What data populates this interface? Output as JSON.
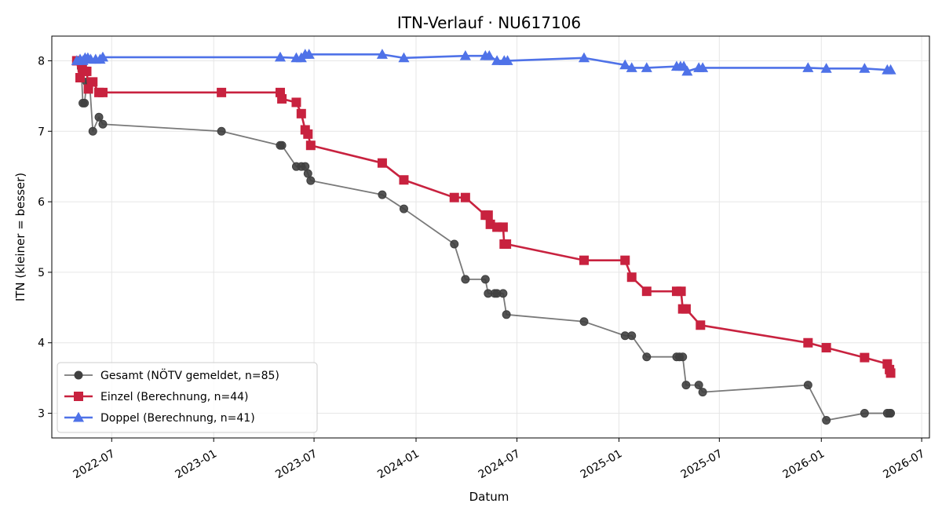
{
  "chart_data": {
    "type": "line",
    "title": "ITN-Verlauf · NU617106",
    "xlabel": "Datum",
    "ylabel": "ITN  (kleiner = besser)",
    "x_type": "date",
    "xlim": [
      "2022-03-15",
      "2026-07-15"
    ],
    "ylim": [
      2.65,
      8.35
    ],
    "x_ticks": [
      "2022-07",
      "2023-01",
      "2023-07",
      "2024-01",
      "2024-07",
      "2025-01",
      "2025-07",
      "2026-01",
      "2026-07"
    ],
    "y_ticks": [
      3,
      4,
      5,
      6,
      7,
      8
    ],
    "grid": true,
    "legend_position": "lower-left",
    "series": [
      {
        "name": "Gesamt (NÖTV gemeldet, n=85)",
        "color": "#404040",
        "marker": "circle",
        "points": [
          [
            "2022-04-29",
            8.0
          ],
          [
            "2022-05-03",
            8.0
          ],
          [
            "2022-05-07",
            7.9
          ],
          [
            "2022-05-10",
            7.4
          ],
          [
            "2022-05-13",
            7.4
          ],
          [
            "2022-05-17",
            7.7
          ],
          [
            "2022-05-22",
            7.7
          ],
          [
            "2022-05-28",
            7.0
          ],
          [
            "2022-06-08",
            7.2
          ],
          [
            "2022-06-15",
            7.1
          ],
          [
            "2023-01-15",
            7.0
          ],
          [
            "2023-05-01",
            6.8
          ],
          [
            "2023-05-04",
            6.8
          ],
          [
            "2023-05-30",
            6.5
          ],
          [
            "2023-06-08",
            6.5
          ],
          [
            "2023-06-15",
            6.5
          ],
          [
            "2023-06-20",
            6.4
          ],
          [
            "2023-06-25",
            6.3
          ],
          [
            "2023-11-01",
            6.1
          ],
          [
            "2023-12-10",
            5.9
          ],
          [
            "2024-03-10",
            5.4
          ],
          [
            "2024-03-30",
            4.9
          ],
          [
            "2024-05-05",
            4.9
          ],
          [
            "2024-05-10",
            4.7
          ],
          [
            "2024-05-22",
            4.7
          ],
          [
            "2024-05-26",
            4.7
          ],
          [
            "2024-06-06",
            4.7
          ],
          [
            "2024-06-12",
            4.4
          ],
          [
            "2024-10-30",
            4.3
          ],
          [
            "2025-01-12",
            4.1
          ],
          [
            "2025-01-24",
            4.1
          ],
          [
            "2025-02-20",
            3.8
          ],
          [
            "2025-04-15",
            3.8
          ],
          [
            "2025-04-20",
            3.8
          ],
          [
            "2025-04-26",
            3.8
          ],
          [
            "2025-05-02",
            3.4
          ],
          [
            "2025-05-25",
            3.4
          ],
          [
            "2025-06-01",
            3.3
          ],
          [
            "2025-12-08",
            3.4
          ],
          [
            "2026-01-10",
            2.9
          ],
          [
            "2026-03-20",
            3.0
          ],
          [
            "2026-04-30",
            3.0
          ],
          [
            "2026-05-04",
            3.0
          ],
          [
            "2026-05-06",
            3.0
          ]
        ]
      },
      {
        "name": "Einzel (Berechnung, n=44)",
        "color": "#c8223f",
        "marker": "square",
        "points": [
          [
            "2022-04-29",
            8.0
          ],
          [
            "2022-05-05",
            7.76
          ],
          [
            "2022-05-09",
            7.9
          ],
          [
            "2022-05-13",
            7.85
          ],
          [
            "2022-05-17",
            7.85
          ],
          [
            "2022-05-20",
            7.6
          ],
          [
            "2022-05-28",
            7.7
          ],
          [
            "2022-06-08",
            7.55
          ],
          [
            "2022-06-15",
            7.55
          ],
          [
            "2023-01-15",
            7.55
          ],
          [
            "2023-05-01",
            7.55
          ],
          [
            "2023-05-04",
            7.46
          ],
          [
            "2023-05-30",
            7.41
          ],
          [
            "2023-06-08",
            7.25
          ],
          [
            "2023-06-15",
            7.02
          ],
          [
            "2023-06-20",
            6.96
          ],
          [
            "2023-06-25",
            6.8
          ],
          [
            "2023-11-01",
            6.55
          ],
          [
            "2023-12-10",
            6.31
          ],
          [
            "2024-03-10",
            6.06
          ],
          [
            "2024-03-30",
            6.06
          ],
          [
            "2024-05-05",
            5.81
          ],
          [
            "2024-05-10",
            5.81
          ],
          [
            "2024-05-14",
            5.68
          ],
          [
            "2024-05-26",
            5.64
          ],
          [
            "2024-06-06",
            5.64
          ],
          [
            "2024-06-08",
            5.4
          ],
          [
            "2024-06-12",
            5.4
          ],
          [
            "2024-10-30",
            5.17
          ],
          [
            "2025-01-12",
            5.17
          ],
          [
            "2025-01-24",
            4.93
          ],
          [
            "2025-02-20",
            4.73
          ],
          [
            "2025-04-15",
            4.73
          ],
          [
            "2025-04-23",
            4.73
          ],
          [
            "2025-04-26",
            4.48
          ],
          [
            "2025-05-02",
            4.48
          ],
          [
            "2025-05-28",
            4.25
          ],
          [
            "2025-12-08",
            4.0
          ],
          [
            "2026-01-10",
            3.93
          ],
          [
            "2026-03-20",
            3.79
          ],
          [
            "2026-04-30",
            3.7
          ],
          [
            "2026-05-04",
            3.62
          ],
          [
            "2026-05-06",
            3.57
          ]
        ]
      },
      {
        "name": "Doppel (Berechnung, n=41)",
        "color": "#4f72e8",
        "marker": "triangle",
        "points": [
          [
            "2022-04-29",
            8.0
          ],
          [
            "2022-05-05",
            8.02
          ],
          [
            "2022-05-10",
            8.0
          ],
          [
            "2022-05-14",
            8.04
          ],
          [
            "2022-05-19",
            8.04
          ],
          [
            "2022-05-24",
            8.02
          ],
          [
            "2022-06-02",
            8.02
          ],
          [
            "2022-06-10",
            8.02
          ],
          [
            "2022-06-15",
            8.05
          ],
          [
            "2023-05-01",
            8.05
          ],
          [
            "2023-05-30",
            8.04
          ],
          [
            "2023-06-08",
            8.04
          ],
          [
            "2023-06-15",
            8.09
          ],
          [
            "2023-06-22",
            8.09
          ],
          [
            "2023-11-01",
            8.09
          ],
          [
            "2023-12-10",
            8.04
          ],
          [
            "2024-03-30",
            8.07
          ],
          [
            "2024-05-05",
            8.07
          ],
          [
            "2024-05-12",
            8.07
          ],
          [
            "2024-05-26",
            8.0
          ],
          [
            "2024-06-08",
            8.0
          ],
          [
            "2024-06-14",
            8.0
          ],
          [
            "2024-10-30",
            8.04
          ],
          [
            "2025-01-12",
            7.94
          ],
          [
            "2025-01-24",
            7.9
          ],
          [
            "2025-02-20",
            7.9
          ],
          [
            "2025-04-15",
            7.92
          ],
          [
            "2025-04-22",
            7.92
          ],
          [
            "2025-04-28",
            7.92
          ],
          [
            "2025-05-04",
            7.85
          ],
          [
            "2025-05-25",
            7.9
          ],
          [
            "2025-06-01",
            7.9
          ],
          [
            "2025-12-08",
            7.9
          ],
          [
            "2026-01-10",
            7.89
          ],
          [
            "2026-03-20",
            7.89
          ],
          [
            "2026-04-30",
            7.87
          ],
          [
            "2026-05-06",
            7.87
          ]
        ]
      }
    ]
  }
}
